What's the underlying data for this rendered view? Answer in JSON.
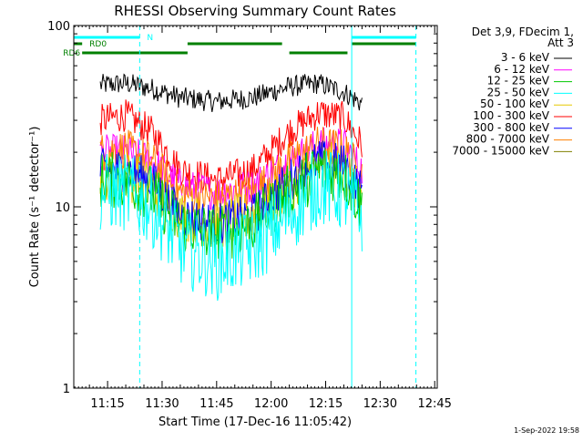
{
  "chart_data": {
    "type": "line",
    "title": "RHESSI Observing Summary Count Rates",
    "xlabel": "Start Time (17-Dec-16 11:05:42)",
    "ylabel": "Count Rate (s⁻¹ detector⁻¹)",
    "yscale": "log",
    "ylim": [
      1,
      100
    ],
    "xlim": [
      "11:05:42",
      "12:45:42"
    ],
    "x_ticks": [
      "11:15",
      "11:30",
      "11:45",
      "12:00",
      "12:15",
      "12:30",
      "12:45"
    ],
    "y_ticks": [
      "1",
      "10",
      "100"
    ],
    "legend_header": [
      "Det 3,9, FDecim 1,",
      "Att 3"
    ],
    "legend_position": "top-right",
    "series": [
      {
        "name": "3 - 6 keV",
        "color": "#000000",
        "x": [
          "11:13",
          "11:20",
          "11:27",
          "11:35",
          "11:45",
          "11:55",
          "12:05",
          "12:13",
          "12:20",
          "12:25"
        ],
        "values": [
          47,
          48,
          45,
          40,
          38,
          40,
          46,
          48,
          43,
          37
        ]
      },
      {
        "name": "6 - 12 keV",
        "color": "#ff00ff",
        "x": [
          "11:13",
          "11:20",
          "11:27",
          "11:35",
          "11:45",
          "11:55",
          "12:05",
          "12:13",
          "12:20",
          "12:25"
        ],
        "values": [
          20,
          20,
          18,
          13,
          12,
          13,
          18,
          22,
          22,
          16
        ]
      },
      {
        "name": "12 - 25 keV",
        "color": "#00c800",
        "x": [
          "11:13",
          "11:20",
          "11:27",
          "11:35",
          "11:45",
          "11:55",
          "12:05",
          "12:13",
          "12:20",
          "12:25"
        ],
        "values": [
          14,
          14,
          12,
          8,
          7,
          8,
          12,
          16,
          15,
          10
        ]
      },
      {
        "name": "25 - 50 keV",
        "color": "#00ffff",
        "x": [
          "11:13",
          "11:20",
          "11:27",
          "11:35",
          "11:45",
          "11:55",
          "12:05",
          "12:13",
          "12:20",
          "12:25"
        ],
        "values": [
          12,
          12,
          10,
          6,
          5,
          6,
          9,
          13,
          12,
          9
        ]
      },
      {
        "name": "50 - 100 keV",
        "color": "#e6c800",
        "x": [
          "11:13",
          "11:20",
          "11:27",
          "11:35",
          "11:45",
          "11:55",
          "12:05",
          "12:13",
          "12:20",
          "12:25"
        ],
        "values": [
          15,
          15,
          13,
          9,
          8,
          9,
          13,
          17,
          16,
          11
        ]
      },
      {
        "name": "100 - 300 keV",
        "color": "#ff0000",
        "x": [
          "11:13",
          "11:20",
          "11:27",
          "11:35",
          "11:45",
          "11:55",
          "12:05",
          "12:13",
          "12:20",
          "12:25"
        ],
        "values": [
          30,
          32,
          26,
          16,
          14,
          16,
          26,
          33,
          31,
          22
        ]
      },
      {
        "name": "300 - 800 keV",
        "color": "#0000ff",
        "x": [
          "11:13",
          "11:20",
          "11:27",
          "11:35",
          "11:45",
          "11:55",
          "12:05",
          "12:13",
          "12:20",
          "12:25"
        ],
        "values": [
          16,
          16,
          14,
          9,
          8,
          9,
          14,
          18,
          17,
          12
        ]
      },
      {
        "name": "800 - 7000 keV",
        "color": "#ff8000",
        "x": [
          "11:13",
          "11:20",
          "11:27",
          "11:35",
          "11:45",
          "11:55",
          "12:05",
          "12:13",
          "12:20",
          "12:25"
        ],
        "values": [
          20,
          21,
          18,
          12,
          11,
          12,
          18,
          22,
          21,
          15
        ]
      },
      {
        "name": "7000 - 15000 keV",
        "color": "#808000",
        "x": [],
        "values": []
      }
    ],
    "vertical_lines": [
      {
        "time": "11:23:50",
        "style": "dashed",
        "color": "#00ffff"
      },
      {
        "time": "12:22:10",
        "style": "solid",
        "color": "#00ffff"
      },
      {
        "time": "12:39:50",
        "style": "dashed",
        "color": "#00ffff"
      }
    ],
    "flag_bars": [
      {
        "label": "N",
        "color": "#00ffff",
        "segments": [
          [
            "11:05:42",
            "11:23:50"
          ],
          [
            "12:22:10",
            "12:39:50"
          ]
        ]
      },
      {
        "label": "RD0",
        "color": "#008000",
        "segments": [
          [
            "11:05:42",
            "11:08:00"
          ],
          [
            "11:37:00",
            "12:03:00"
          ],
          [
            "12:22:10",
            "12:39:50"
          ]
        ]
      },
      {
        "label": "RD6",
        "color": "#008000",
        "segments": [
          [
            "11:08:00",
            "11:37:00"
          ],
          [
            "12:05:00",
            "12:21:00"
          ]
        ]
      }
    ],
    "timestamp": "1-Sep-2022 19:58"
  }
}
